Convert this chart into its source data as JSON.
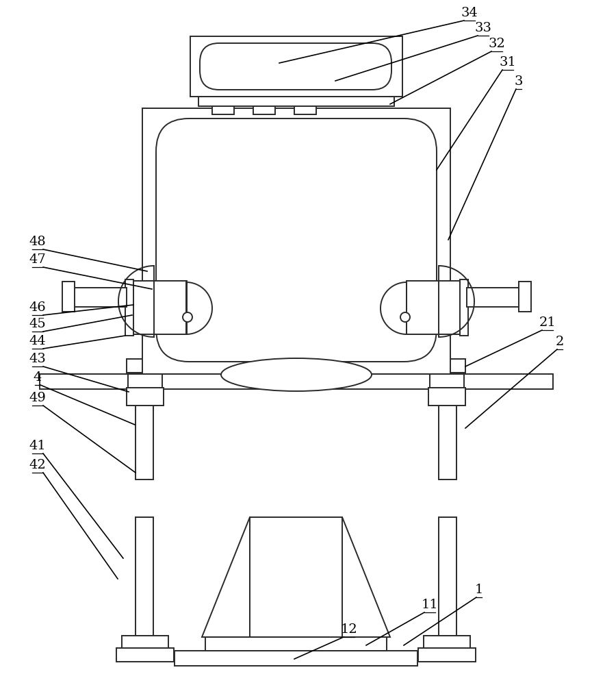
{
  "bg": "#ffffff",
  "lc": "#2a2a2a",
  "lw": 1.4
}
